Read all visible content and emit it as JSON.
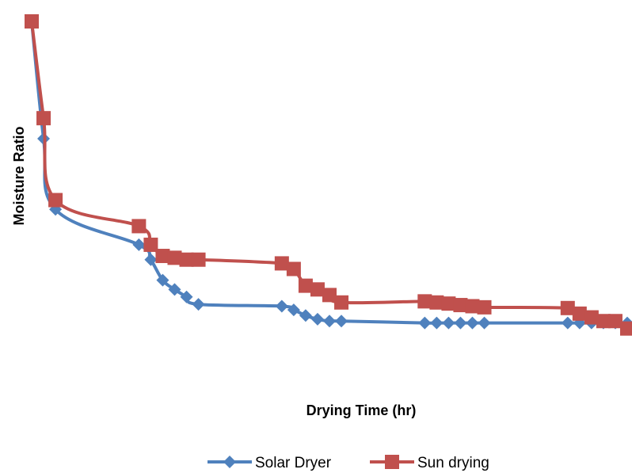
{
  "chart_data": {
    "type": "line",
    "title": "",
    "xlabel": "Drying Time (hr)",
    "ylabel": "Moisture Ratio",
    "xlim": [
      0,
      50
    ],
    "ylim": [
      0,
      1
    ],
    "grid": false,
    "legend_position": "bottom",
    "series": [
      {
        "name": "Solar Dryer",
        "color": "#4f81bd",
        "marker": "diamond",
        "x": [
          0,
          1,
          2,
          9,
          10,
          11,
          12,
          13,
          14,
          21,
          22,
          23,
          24,
          25,
          26,
          33,
          34,
          35,
          36,
          37,
          38,
          45,
          46,
          47,
          48,
          49,
          50
        ],
        "y": [
          1.0,
          0.685,
          0.495,
          0.4,
          0.36,
          0.305,
          0.28,
          0.26,
          0.24,
          0.235,
          0.225,
          0.21,
          0.2,
          0.195,
          0.195,
          0.19,
          0.19,
          0.19,
          0.19,
          0.19,
          0.19,
          0.19,
          0.19,
          0.19,
          0.19,
          0.19,
          0.19
        ]
      },
      {
        "name": "Sun drying",
        "color": "#c0504d",
        "marker": "square",
        "x": [
          0,
          1,
          2,
          9,
          10,
          11,
          12,
          13,
          14,
          21,
          22,
          23,
          24,
          25,
          26,
          33,
          34,
          35,
          36,
          37,
          38,
          45,
          46,
          47,
          48,
          49,
          50
        ],
        "y": [
          1.0,
          0.74,
          0.52,
          0.45,
          0.4,
          0.37,
          0.365,
          0.36,
          0.36,
          0.35,
          0.335,
          0.29,
          0.28,
          0.265,
          0.245,
          0.248,
          0.245,
          0.242,
          0.238,
          0.235,
          0.232,
          0.23,
          0.215,
          0.205,
          0.195,
          0.195,
          0.175
        ]
      }
    ]
  }
}
